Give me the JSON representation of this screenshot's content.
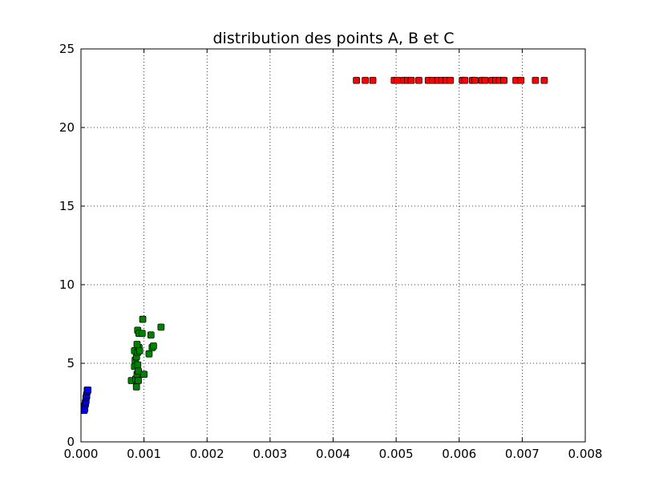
{
  "chart_data": {
    "type": "scatter",
    "title": "distribution des points A, B et C",
    "xlabel": "",
    "ylabel": "",
    "xlim": [
      0.0,
      0.008
    ],
    "ylim": [
      0,
      25
    ],
    "x_ticks": [
      {
        "value": 0.0,
        "label": "0.000"
      },
      {
        "value": 0.001,
        "label": "0.001"
      },
      {
        "value": 0.002,
        "label": "0.002"
      },
      {
        "value": 0.003,
        "label": "0.003"
      },
      {
        "value": 0.004,
        "label": "0.004"
      },
      {
        "value": 0.005,
        "label": "0.005"
      },
      {
        "value": 0.006,
        "label": "0.006"
      },
      {
        "value": 0.007,
        "label": "0.007"
      },
      {
        "value": 0.008,
        "label": "0.008"
      }
    ],
    "y_ticks": [
      {
        "value": 0,
        "label": "0"
      },
      {
        "value": 5,
        "label": "5"
      },
      {
        "value": 10,
        "label": "10"
      },
      {
        "value": 15,
        "label": "15"
      },
      {
        "value": 20,
        "label": "20"
      },
      {
        "value": 25,
        "label": "25"
      }
    ],
    "grid": true,
    "marker": "square",
    "series": [
      {
        "color": "#0000ff",
        "points": [
          [
            5e-05,
            2.0
          ],
          [
            6e-05,
            2.1
          ],
          [
            6e-05,
            2.3
          ],
          [
            7e-05,
            2.4
          ],
          [
            7e-05,
            2.5
          ],
          [
            8e-05,
            2.6
          ],
          [
            8e-05,
            2.8
          ],
          [
            9e-05,
            2.9
          ],
          [
            9e-05,
            3.0
          ],
          [
            0.0001,
            3.2
          ],
          [
            0.0001,
            3.3
          ],
          [
            0.00011,
            3.3
          ]
        ]
      },
      {
        "color": "#008000",
        "points": [
          [
            0.0008,
            3.9
          ],
          [
            0.00085,
            4.8
          ],
          [
            0.00088,
            3.5
          ],
          [
            0.00087,
            4.0
          ],
          [
            0.00089,
            4.3
          ],
          [
            0.00091,
            3.9
          ],
          [
            0.00086,
            5.2
          ],
          [
            0.00088,
            5.4
          ],
          [
            0.00085,
            5.8
          ],
          [
            0.0009,
            5.7
          ],
          [
            0.00092,
            6.0
          ],
          [
            0.00089,
            6.2
          ],
          [
            0.00093,
            5.8
          ],
          [
            0.0009,
            4.9
          ],
          [
            0.00091,
            4.5
          ],
          [
            0.0009,
            7.1
          ],
          [
            0.00092,
            6.9
          ],
          [
            0.00098,
            7.8
          ],
          [
            0.00097,
            6.9
          ],
          [
            0.001,
            4.3
          ],
          [
            0.00108,
            5.6
          ],
          [
            0.00111,
            6.8
          ],
          [
            0.00113,
            6.0
          ],
          [
            0.00115,
            6.1
          ],
          [
            0.00127,
            7.3
          ]
        ]
      },
      {
        "color": "#ff0000",
        "points": [
          [
            0.00437,
            23.0
          ],
          [
            0.00451,
            23.0
          ],
          [
            0.00463,
            23.0
          ],
          [
            0.00497,
            23.0
          ],
          [
            0.00502,
            23.0
          ],
          [
            0.00512,
            23.0
          ],
          [
            0.00518,
            23.0
          ],
          [
            0.00524,
            23.0
          ],
          [
            0.00536,
            23.0
          ],
          [
            0.00551,
            23.0
          ],
          [
            0.00558,
            23.0
          ],
          [
            0.00566,
            23.0
          ],
          [
            0.00573,
            23.0
          ],
          [
            0.00579,
            23.0
          ],
          [
            0.00586,
            23.0
          ],
          [
            0.00605,
            23.0
          ],
          [
            0.00609,
            23.0
          ],
          [
            0.00621,
            23.0
          ],
          [
            0.00625,
            23.0
          ],
          [
            0.00636,
            23.0
          ],
          [
            0.00641,
            23.0
          ],
          [
            0.00652,
            23.0
          ],
          [
            0.00658,
            23.0
          ],
          [
            0.00664,
            23.0
          ],
          [
            0.00671,
            23.0
          ],
          [
            0.0069,
            23.0
          ],
          [
            0.00698,
            23.0
          ],
          [
            0.00721,
            23.0
          ],
          [
            0.00735,
            23.0
          ]
        ]
      }
    ]
  }
}
